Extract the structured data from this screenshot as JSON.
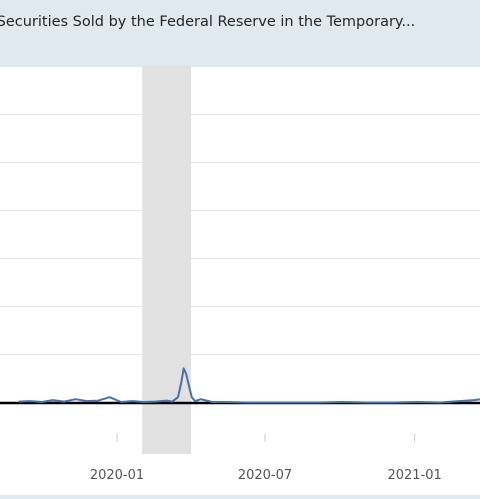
{
  "chart_data": {
    "type": "line",
    "title": "...asury Securities Sold by the Federal Reserve in the Temporary...",
    "xlabel": "",
    "ylabel": "",
    "x_tick_labels": [
      "2020-01",
      "2020-07",
      "2021-01"
    ],
    "grid": true,
    "recession_shading": {
      "start": "2020-02",
      "end": "2020-04"
    },
    "colors": {
      "series": "#4572a7",
      "zero_line": "#000000",
      "recession": "#e1e1e1",
      "grid": "#e4e4e4",
      "frame_background": "#e1e9f0",
      "plot_background": "#ffffff"
    },
    "series": [
      {
        "values": [
          [
            "2019-09-02",
            0.3
          ],
          [
            "2019-09-16",
            0.4
          ],
          [
            "2019-10-01",
            0.2
          ],
          [
            "2019-10-14",
            0.6
          ],
          [
            "2019-10-28",
            0.3
          ],
          [
            "2019-11-11",
            0.8
          ],
          [
            "2019-11-25",
            0.4
          ],
          [
            "2019-12-09",
            0.5
          ],
          [
            "2019-12-23",
            1.2
          ],
          [
            "2020-01-06",
            0.2
          ],
          [
            "2020-01-20",
            0.4
          ],
          [
            "2020-02-03",
            0.2
          ],
          [
            "2020-02-17",
            0.3
          ],
          [
            "2020-03-02",
            0.5
          ],
          [
            "2020-03-09",
            0.3
          ],
          [
            "2020-03-16",
            1.2
          ],
          [
            "2020-03-20",
            4.2
          ],
          [
            "2020-03-23",
            7.2
          ],
          [
            "2020-03-26",
            6.1
          ],
          [
            "2020-03-30",
            3.2
          ],
          [
            "2020-04-02",
            1.2
          ],
          [
            "2020-04-06",
            0.4
          ],
          [
            "2020-04-13",
            0.8
          ],
          [
            "2020-04-27",
            0.2
          ],
          [
            "2020-05-11",
            0.2
          ],
          [
            "2020-06-08",
            0.1
          ],
          [
            "2020-07-06",
            0.1
          ],
          [
            "2020-08-03",
            0.1
          ],
          [
            "2020-09-07",
            0.1
          ],
          [
            "2020-10-05",
            0.2
          ],
          [
            "2020-11-02",
            0.1
          ],
          [
            "2020-12-07",
            0.1
          ],
          [
            "2021-01-04",
            0.2
          ],
          [
            "2021-02-01",
            0.1
          ],
          [
            "2021-03-15",
            0.6
          ],
          [
            "2021-03-29",
            0.9
          ]
        ]
      }
    ]
  }
}
